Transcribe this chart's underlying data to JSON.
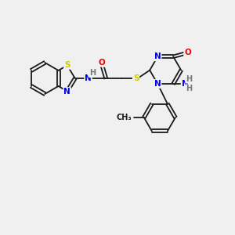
{
  "background_color": "#f0f0f0",
  "bond_color": "#1a1a1a",
  "atom_colors": {
    "S": "#cccc00",
    "N": "#0000ee",
    "O": "#ee0000",
    "H": "#777777",
    "C": "#1a1a1a"
  },
  "figsize": [
    3.0,
    3.0
  ],
  "dpi": 100,
  "lw": 1.3,
  "fs": 7.5
}
